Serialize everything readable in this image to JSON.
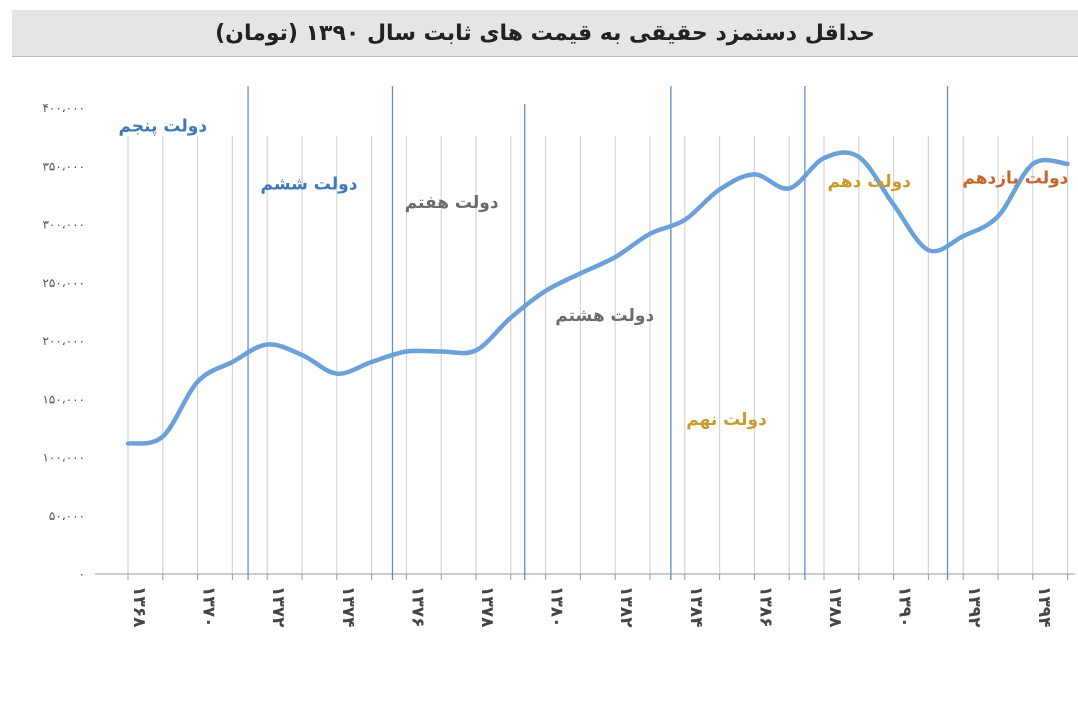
{
  "title": "حداقل دستمزد حقیقی به قیمت های ثابت سال ۱۳۹۰ (تومان)",
  "colors": {
    "line": "#6ca0d8",
    "grid": "#d6d6d6",
    "divider": "#5b8fd0",
    "gov_blue": "#3f78b8",
    "gov_gray": "#6b6b6b",
    "gov_gold": "#c99a2e",
    "gov_orange": "#c8632a"
  },
  "chart_data": {
    "type": "line",
    "title": "حداقل دستمزد حقیقی به قیمت های ثابت سال ۱۳۹۰ (تومان)",
    "xlabel": "",
    "ylabel": "",
    "ylim": [
      0,
      400000
    ],
    "grid": "vertical",
    "y_ticks": [
      {
        "value": 0,
        "label": "۰"
      },
      {
        "value": 50000,
        "label": "۵۰،۰۰۰"
      },
      {
        "value": 100000,
        "label": "۱۰۰،۰۰۰"
      },
      {
        "value": 150000,
        "label": "۱۵۰،۰۰۰"
      },
      {
        "value": 200000,
        "label": "۲۰۰،۰۰۰"
      },
      {
        "value": 250000,
        "label": "۲۵۰،۰۰۰"
      },
      {
        "value": 300000,
        "label": "۳۰۰،۰۰۰"
      },
      {
        "value": 350000,
        "label": "۳۵۰،۰۰۰"
      },
      {
        "value": 400000,
        "label": "۴۰۰،۰۰۰"
      }
    ],
    "x_tick_labels": [
      {
        "year": 1368,
        "label": "۱۳۶۸"
      },
      {
        "year": 1370,
        "label": "۱۳۷۰"
      },
      {
        "year": 1372,
        "label": "۱۳۷۲"
      },
      {
        "year": 1374,
        "label": "۱۳۷۴"
      },
      {
        "year": 1376,
        "label": "۱۳۷۶"
      },
      {
        "year": 1378,
        "label": "۱۳۷۸"
      },
      {
        "year": 1380,
        "label": "۱۳۸۰"
      },
      {
        "year": 1382,
        "label": "۱۳۸۲"
      },
      {
        "year": 1384,
        "label": "۱۳۸۴"
      },
      {
        "year": 1386,
        "label": "۱۳۸۶"
      },
      {
        "year": 1388,
        "label": "۱۳۸۸"
      },
      {
        "year": 1390,
        "label": "۱۳۹۰"
      },
      {
        "year": 1392,
        "label": "۱۳۹۲"
      },
      {
        "year": 1394,
        "label": "۱۳۹۴"
      }
    ],
    "x": [
      1368,
      1369,
      1370,
      1371,
      1372,
      1373,
      1374,
      1375,
      1376,
      1377,
      1378,
      1379,
      1380,
      1381,
      1382,
      1383,
      1384,
      1385,
      1386,
      1387,
      1388,
      1389,
      1390,
      1391,
      1392,
      1393,
      1394,
      1395
    ],
    "series": [
      {
        "values": [
          112000,
          118000,
          165000,
          182000,
          197000,
          188000,
          172000,
          182000,
          191000,
          191000,
          192000,
          220000,
          243000,
          258000,
          272000,
          292000,
          304000,
          330000,
          343000,
          331000,
          357000,
          358000,
          317000,
          278000,
          290000,
          307000,
          352000,
          352000
        ]
      }
    ],
    "government_dividers": [
      1371.45,
      1375.6,
      1379.4,
      1383.6,
      1387.45,
      1391.55
    ],
    "governments": [
      {
        "label": "دولت پنجم",
        "x": 1369.0,
        "y": 380000,
        "color_key": "gov_blue"
      },
      {
        "label": "دولت ششم",
        "x": 1373.2,
        "y": 330000,
        "color_key": "gov_blue"
      },
      {
        "label": "دولت هفتم",
        "x": 1377.3,
        "y": 314000,
        "color_key": "gov_gray"
      },
      {
        "label": "دولت هشتم",
        "x": 1381.7,
        "y": 217000,
        "color_key": "gov_gray"
      },
      {
        "label": "دولت نهم",
        "x": 1385.2,
        "y": 128000,
        "color_key": "gov_gold"
      },
      {
        "label": "دولت دهم",
        "x": 1389.3,
        "y": 332000,
        "color_key": "gov_gold"
      },
      {
        "label": "دولت یازدهم",
        "x": 1393.5,
        "y": 335000,
        "color_key": "gov_orange"
      }
    ]
  }
}
